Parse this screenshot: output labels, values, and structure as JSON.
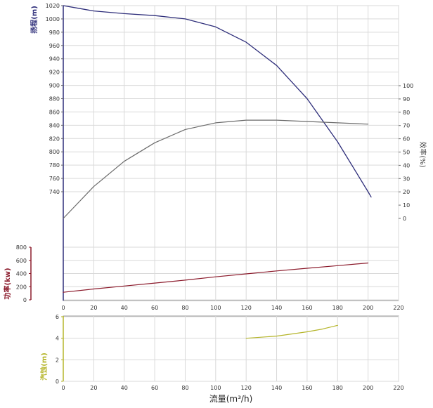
{
  "chart_data": {
    "type": "line",
    "x_axis": {
      "label": "流量(m³/h)",
      "range": [
        0,
        220
      ],
      "ticks": [
        0,
        20,
        40,
        60,
        80,
        100,
        120,
        140,
        160,
        180,
        200,
        220
      ]
    },
    "axes": {
      "head": {
        "label": "扬程(m)",
        "color": "#2e2e7a",
        "range": [
          700,
          1020
        ],
        "ticks": [
          740,
          760,
          780,
          800,
          820,
          840,
          860,
          880,
          900,
          920,
          940,
          960,
          980,
          1000,
          1020
        ]
      },
      "efficiency": {
        "label": "效率(%)",
        "color": "#6b6b2a",
        "range": [
          0,
          120
        ],
        "ticks": [
          0,
          10,
          20,
          30,
          40,
          50,
          60,
          70,
          80,
          90,
          100
        ]
      },
      "power": {
        "label": "功率(kw)",
        "color": "#8b1a2b",
        "range": [
          0,
          1200
        ],
        "ticks": [
          0,
          200,
          400,
          600,
          800
        ]
      },
      "npsh": {
        "label": "汽蚀(m)",
        "color": "#b5b52a",
        "range": [
          0,
          6
        ],
        "ticks": [
          0,
          2,
          4,
          6
        ]
      }
    },
    "series": [
      {
        "axis": "head",
        "color": "#2e2e7a",
        "x": [
          0,
          10,
          20,
          40,
          60,
          80,
          100,
          120,
          140,
          160,
          180,
          200,
          202
        ],
        "y": [
          1020,
          1016,
          1012,
          1008,
          1005,
          1000,
          988,
          965,
          930,
          880,
          815,
          740,
          732
        ]
      },
      {
        "axis": "efficiency",
        "color": "#6b6b6b",
        "x": [
          0,
          20,
          40,
          60,
          80,
          100,
          120,
          140,
          160,
          180,
          200
        ],
        "y": [
          0,
          24,
          43,
          57,
          67,
          72,
          74,
          74,
          73,
          72,
          71
        ]
      },
      {
        "axis": "power",
        "color": "#8b1a2b",
        "x": [
          0,
          20,
          40,
          60,
          80,
          100,
          120,
          140,
          160,
          180,
          200
        ],
        "y": [
          115,
          165,
          210,
          255,
          300,
          350,
          395,
          440,
          480,
          520,
          560
        ]
      },
      {
        "axis": "npsh",
        "color": "#b5b52a",
        "x": [
          120,
          140,
          160,
          170,
          180
        ],
        "y": [
          4.0,
          4.2,
          4.6,
          4.85,
          5.2
        ]
      }
    ],
    "grid": true
  }
}
